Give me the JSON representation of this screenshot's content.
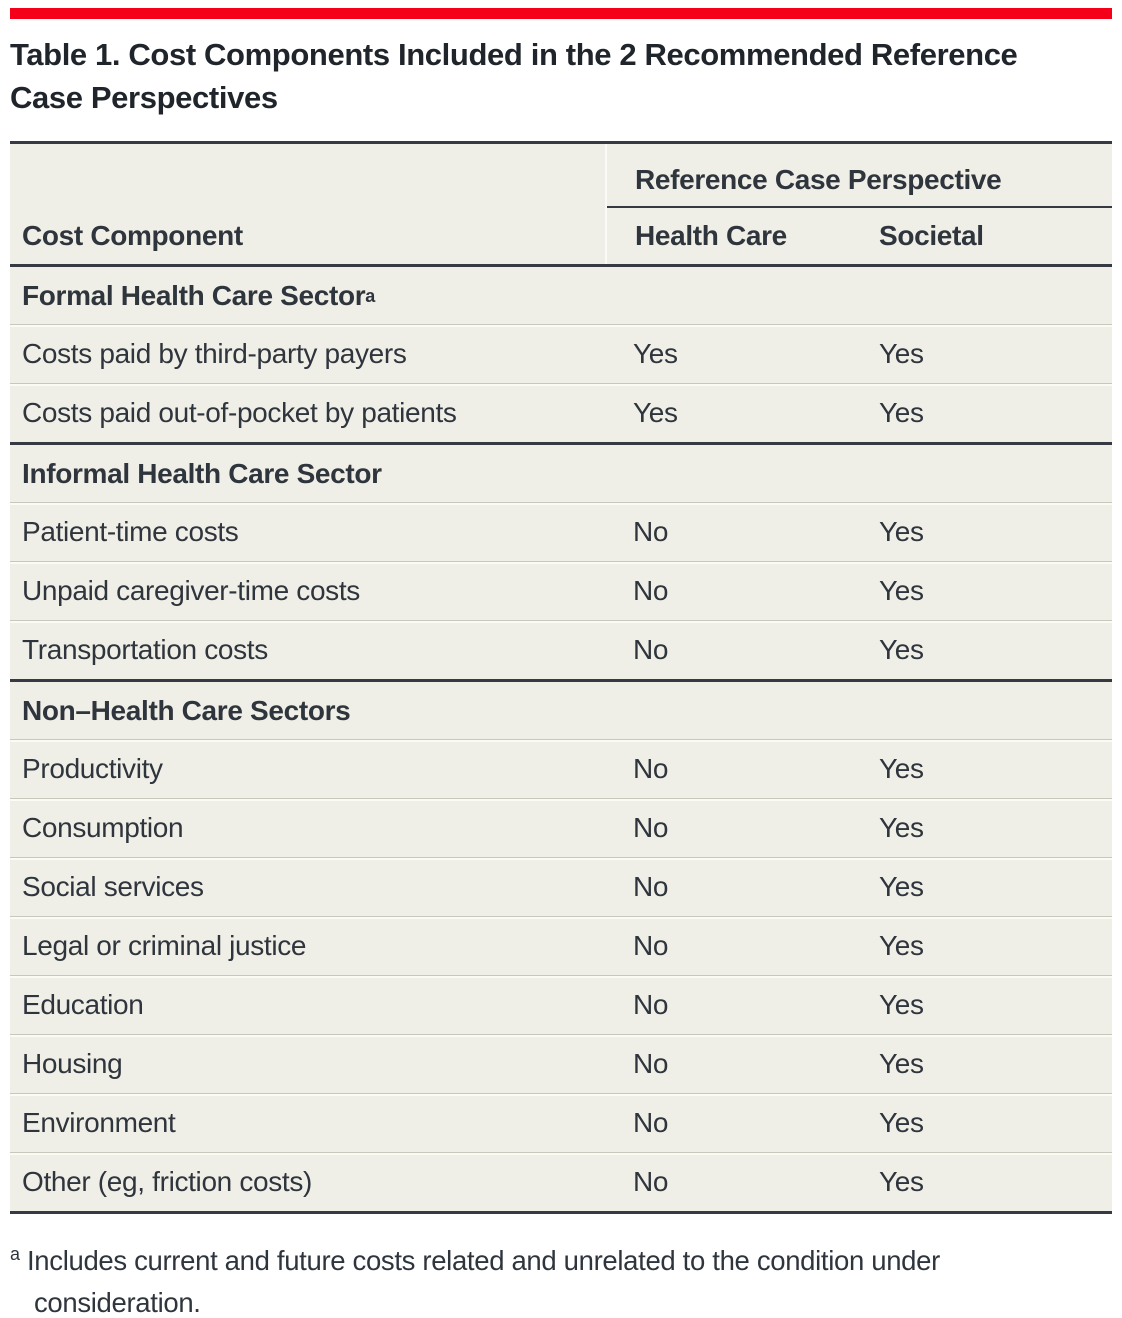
{
  "accent_color": "#f40019",
  "title": {
    "line1": "Table 1. Cost Components Included in the 2 Recommended Reference",
    "line2": "Case Perspectives"
  },
  "table": {
    "column_group_header": "Reference Case Perspective",
    "columns": {
      "cost_component": "Cost Component",
      "health_care": "Health Care",
      "societal": "Societal"
    },
    "sections": [
      {
        "header": "Formal Health Care Sector",
        "header_superscript": "a",
        "rows": [
          {
            "label": "Costs paid by third-party payers",
            "health_care": "Yes",
            "societal": "Yes"
          },
          {
            "label": "Costs paid out-of-pocket by patients",
            "health_care": "Yes",
            "societal": "Yes"
          }
        ]
      },
      {
        "header": "Informal Health Care Sector",
        "rows": [
          {
            "label": "Patient-time costs",
            "health_care": "No",
            "societal": "Yes"
          },
          {
            "label": "Unpaid caregiver-time costs",
            "health_care": "No",
            "societal": "Yes"
          },
          {
            "label": "Transportation costs",
            "health_care": "No",
            "societal": "Yes"
          }
        ]
      },
      {
        "header": "Non–Health Care Sectors",
        "rows": [
          {
            "label": "Productivity",
            "health_care": "No",
            "societal": "Yes"
          },
          {
            "label": "Consumption",
            "health_care": "No",
            "societal": "Yes"
          },
          {
            "label": "Social services",
            "health_care": "No",
            "societal": "Yes"
          },
          {
            "label": "Legal or criminal justice",
            "health_care": "No",
            "societal": "Yes"
          },
          {
            "label": "Education",
            "health_care": "No",
            "societal": "Yes"
          },
          {
            "label": "Housing",
            "health_care": "No",
            "societal": "Yes"
          },
          {
            "label": "Environment",
            "health_care": "No",
            "societal": "Yes"
          },
          {
            "label": "Other (eg, friction costs)",
            "health_care": "No",
            "societal": "Yes"
          }
        ]
      }
    ]
  },
  "footnote": {
    "marker": "a",
    "text": "Includes current and future costs related and unrelated to the condition under consideration."
  }
}
